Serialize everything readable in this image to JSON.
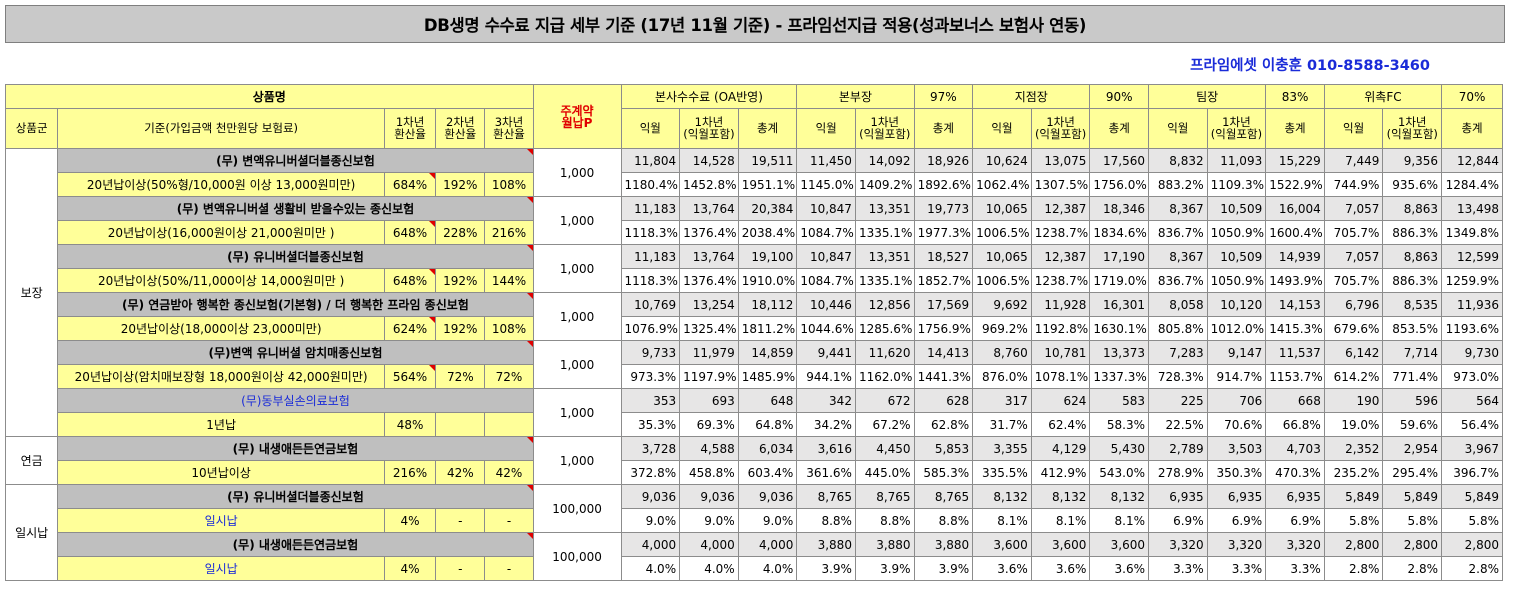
{
  "title": "DB생명 수수료 지급 세부 기준 (17년 11월 기준) - 프라임선지급 적용(성과보너스 보험사 연동)",
  "subtitle": "프라임에셋 이충훈 010-8588-3460",
  "header": {
    "product_name": "상품명",
    "main_contract_monthly": "주계약\n월납P",
    "hq_fee": "본사수수료 (OA반영)",
    "group1": "본부장",
    "group1_rate": "97%",
    "group2": "지점장",
    "group2_rate": "90%",
    "group3": "팀장",
    "group3_rate": "83%",
    "group4": "위촉FC",
    "group4_rate": "70%",
    "product_group": "상품군",
    "basis": "기준(가입금액 천만원당 보험료)",
    "yr1": "1차년\n환산율",
    "yr2": "2차년\n환산율",
    "yr3": "3차년\n환산율",
    "ikwol": "익월",
    "first_year": "1차년\n(익월포함)",
    "total": "총계"
  },
  "groups": [
    {
      "name": "보장",
      "products": [
        {
          "name": "(무) 변액유니버셜더블종신보험",
          "blue": false,
          "basis": "20년납이상(50%형/10,000원 이상 13,000원미만)",
          "r1": "684%",
          "r2": "192%",
          "r3": "108%",
          "monthly": "1,000",
          "amounts": [
            "11,804",
            "14,528",
            "19,511",
            "11,450",
            "14,092",
            "18,926",
            "10,624",
            "13,075",
            "17,560",
            "8,832",
            "11,093",
            "15,229",
            "7,449",
            "9,356",
            "12,844"
          ],
          "rates": [
            "1180.4%",
            "1452.8%",
            "1951.1%",
            "1145.0%",
            "1409.2%",
            "1892.6%",
            "1062.4%",
            "1307.5%",
            "1756.0%",
            "883.2%",
            "1109.3%",
            "1522.9%",
            "744.9%",
            "935.6%",
            "1284.4%"
          ]
        },
        {
          "name": "(무) 변액유니버셜 생활비 받을수있는 종신보험",
          "blue": false,
          "basis": "20년납이상(16,000원이상 21,000원미만 )",
          "r1": "648%",
          "r2": "228%",
          "r3": "216%",
          "monthly": "1,000",
          "amounts": [
            "11,183",
            "13,764",
            "20,384",
            "10,847",
            "13,351",
            "19,773",
            "10,065",
            "12,387",
            "18,346",
            "8,367",
            "10,509",
            "16,004",
            "7,057",
            "8,863",
            "13,498"
          ],
          "rates": [
            "1118.3%",
            "1376.4%",
            "2038.4%",
            "1084.7%",
            "1335.1%",
            "1977.3%",
            "1006.5%",
            "1238.7%",
            "1834.6%",
            "836.7%",
            "1050.9%",
            "1600.4%",
            "705.7%",
            "886.3%",
            "1349.8%"
          ]
        },
        {
          "name": "(무) 유니버셜더블종신보험",
          "blue": false,
          "basis": "20년납이상(50%/11,000이상 14,000원미만 )",
          "r1": "648%",
          "r2": "192%",
          "r3": "144%",
          "monthly": "1,000",
          "amounts": [
            "11,183",
            "13,764",
            "19,100",
            "10,847",
            "13,351",
            "18,527",
            "10,065",
            "12,387",
            "17,190",
            "8,367",
            "10,509",
            "14,939",
            "7,057",
            "8,863",
            "12,599"
          ],
          "rates": [
            "1118.3%",
            "1376.4%",
            "1910.0%",
            "1084.7%",
            "1335.1%",
            "1852.7%",
            "1006.5%",
            "1238.7%",
            "1719.0%",
            "836.7%",
            "1050.9%",
            "1493.9%",
            "705.7%",
            "886.3%",
            "1259.9%"
          ]
        },
        {
          "name": "(무) 연금받아 행복한 종신보험(기본형) / 더 행복한 프라임 종신보험",
          "blue": false,
          "basis": "20년납이상(18,000이상 23,000미만)",
          "r1": "624%",
          "r2": "192%",
          "r3": "108%",
          "monthly": "1,000",
          "amounts": [
            "10,769",
            "13,254",
            "18,112",
            "10,446",
            "12,856",
            "17,569",
            "9,692",
            "11,928",
            "16,301",
            "8,058",
            "10,120",
            "14,153",
            "6,796",
            "8,535",
            "11,936"
          ],
          "rates": [
            "1076.9%",
            "1325.4%",
            "1811.2%",
            "1044.6%",
            "1285.6%",
            "1756.9%",
            "969.2%",
            "1192.8%",
            "1630.1%",
            "805.8%",
            "1012.0%",
            "1415.3%",
            "679.6%",
            "853.5%",
            "1193.6%"
          ]
        },
        {
          "name": "(무)변액 유니버셜 암치매종신보험",
          "blue": false,
          "basis": "20년납이상(암치매보장형 18,000원이상 42,000원미만)",
          "r1": "564%",
          "r2": "72%",
          "r3": "72%",
          "monthly": "1,000",
          "amounts": [
            "9,733",
            "11,979",
            "14,859",
            "9,441",
            "11,620",
            "14,413",
            "8,760",
            "10,781",
            "13,373",
            "7,283",
            "9,147",
            "11,537",
            "6,142",
            "7,714",
            "9,730"
          ],
          "rates": [
            "973.3%",
            "1197.9%",
            "1485.9%",
            "944.1%",
            "1162.0%",
            "1441.3%",
            "876.0%",
            "1078.1%",
            "1337.3%",
            "728.3%",
            "914.7%",
            "1153.7%",
            "614.2%",
            "771.4%",
            "973.0%"
          ]
        },
        {
          "name": "(무)동부실손의료보험",
          "blue": true,
          "basis": "1년납",
          "r1": "48%",
          "r2": "",
          "r3": "",
          "monthly": "1,000",
          "amounts": [
            "353",
            "693",
            "648",
            "342",
            "672",
            "628",
            "317",
            "624",
            "583",
            "225",
            "706",
            "668",
            "190",
            "596",
            "564"
          ],
          "rates": [
            "35.3%",
            "69.3%",
            "64.8%",
            "34.2%",
            "67.2%",
            "62.8%",
            "31.7%",
            "62.4%",
            "58.3%",
            "22.5%",
            "70.6%",
            "66.8%",
            "19.0%",
            "59.6%",
            "56.4%"
          ]
        }
      ]
    },
    {
      "name": "연금",
      "products": [
        {
          "name": "(무) 내생애든든연금보험",
          "blue": false,
          "basis": "10년납이상",
          "r1": "216%",
          "r2": "42%",
          "r3": "42%",
          "monthly": "1,000",
          "amounts": [
            "3,728",
            "4,588",
            "6,034",
            "3,616",
            "4,450",
            "5,853",
            "3,355",
            "4,129",
            "5,430",
            "2,789",
            "3,503",
            "4,703",
            "2,352",
            "2,954",
            "3,967"
          ],
          "rates": [
            "372.8%",
            "458.8%",
            "603.4%",
            "361.6%",
            "445.0%",
            "585.3%",
            "335.5%",
            "412.9%",
            "543.0%",
            "278.9%",
            "350.3%",
            "470.3%",
            "235.2%",
            "295.4%",
            "396.7%"
          ]
        }
      ]
    },
    {
      "name": "일시납",
      "products": [
        {
          "name": "(무) 유니버셜더블종신보험",
          "blue": false,
          "basis": "일시납",
          "basis_blue": true,
          "r1": "4%",
          "r2": "-",
          "r3": "-",
          "monthly": "100,000",
          "amounts": [
            "9,036",
            "9,036",
            "9,036",
            "8,765",
            "8,765",
            "8,765",
            "8,132",
            "8,132",
            "8,132",
            "6,935",
            "6,935",
            "6,935",
            "5,849",
            "5,849",
            "5,849"
          ],
          "rates": [
            "9.0%",
            "9.0%",
            "9.0%",
            "8.8%",
            "8.8%",
            "8.8%",
            "8.1%",
            "8.1%",
            "8.1%",
            "6.9%",
            "6.9%",
            "6.9%",
            "5.8%",
            "5.8%",
            "5.8%"
          ]
        },
        {
          "name": "(무) 내생애든든연금보험",
          "blue": false,
          "basis": "일시납",
          "basis_blue": true,
          "r1": "4%",
          "r2": "-",
          "r3": "-",
          "monthly": "100,000",
          "amounts": [
            "4,000",
            "4,000",
            "4,000",
            "3,880",
            "3,880",
            "3,880",
            "3,600",
            "3,600",
            "3,600",
            "3,320",
            "3,320",
            "3,320",
            "2,800",
            "2,800",
            "2,800"
          ],
          "rates": [
            "4.0%",
            "4.0%",
            "4.0%",
            "3.9%",
            "3.9%",
            "3.9%",
            "3.6%",
            "3.6%",
            "3.6%",
            "3.3%",
            "3.3%",
            "3.3%",
            "2.8%",
            "2.8%",
            "2.8%"
          ]
        }
      ]
    }
  ]
}
